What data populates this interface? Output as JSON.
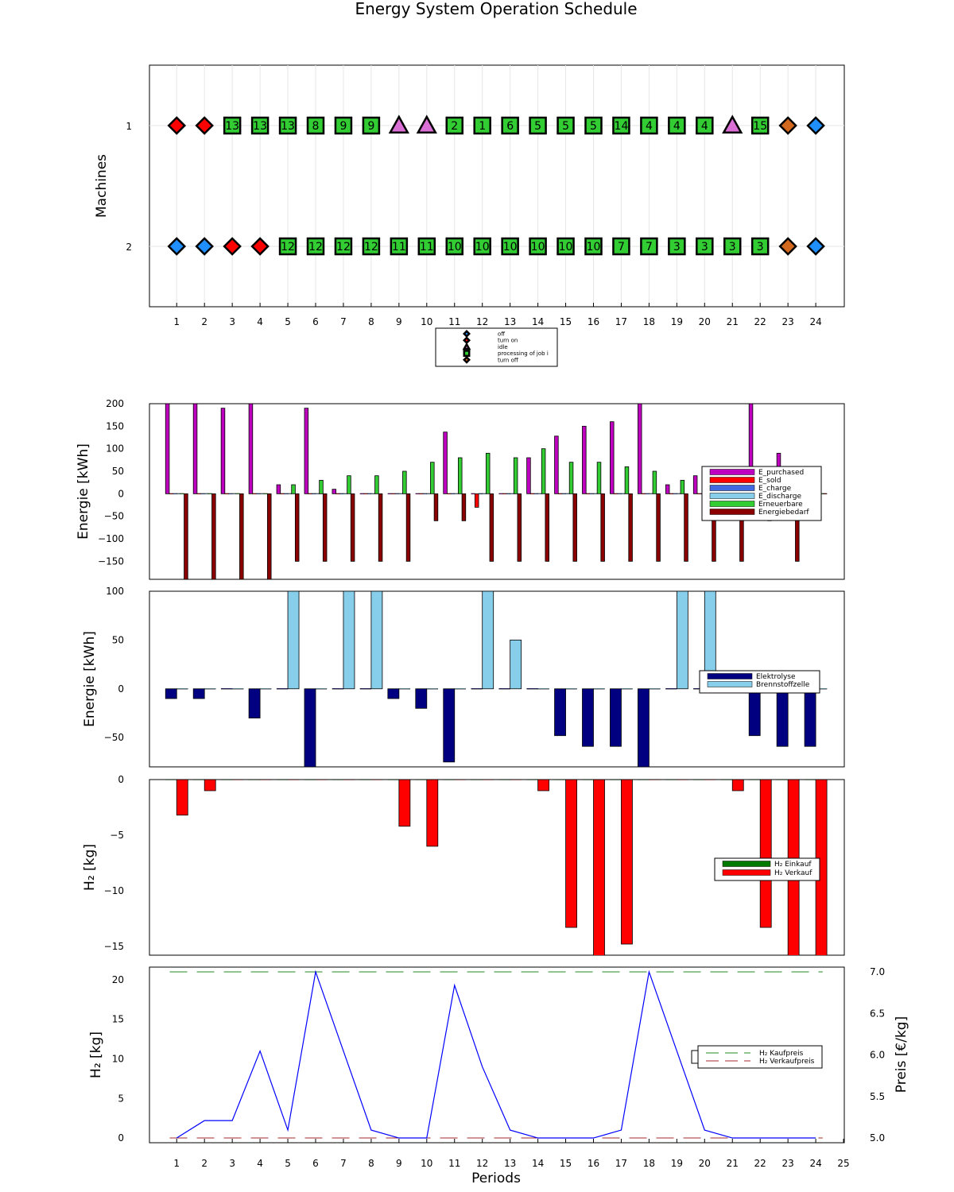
{
  "title": "Energy System Operation Schedule",
  "chart_data": [
    {
      "type": "scatter",
      "ylabel": "Machines",
      "xlabel": "",
      "x_ticks": [
        1,
        2,
        3,
        4,
        5,
        6,
        7,
        8,
        9,
        10,
        11,
        12,
        13,
        14,
        15,
        16,
        17,
        18,
        19,
        20,
        21,
        22,
        23,
        24
      ],
      "y_ticks": [
        "1",
        "2"
      ],
      "legend": [
        {
          "key": "off",
          "label": "off",
          "marker": "diamond",
          "color": "#1f8fff"
        },
        {
          "key": "on",
          "label": "turn on",
          "marker": "diamond",
          "color": "#ff0000"
        },
        {
          "key": "idle",
          "label": "idle",
          "marker": "triangle",
          "color": "#da70d6"
        },
        {
          "key": "job",
          "label": "processing of job i",
          "marker": "square",
          "color": "#32cd32"
        },
        {
          "key": "toff",
          "label": "turn off",
          "marker": "diamond",
          "color": "#d2691e"
        }
      ],
      "legend_position": "bottom-center",
      "machines": [
        {
          "name": "1",
          "states": [
            "on",
            "on",
            "13",
            "13",
            "13",
            "8",
            "9",
            "9",
            "idle",
            "idle",
            "2",
            "1",
            "6",
            "5",
            "5",
            "5",
            "14",
            "4",
            "4",
            "4",
            "idle",
            "15",
            "toff",
            "off"
          ]
        },
        {
          "name": "2",
          "states": [
            "off",
            "off",
            "on",
            "on",
            "12",
            "12",
            "12",
            "12",
            "11",
            "11",
            "10",
            "10",
            "10",
            "10",
            "10",
            "10",
            "7",
            "7",
            "3",
            "3",
            "3",
            "3",
            "toff",
            "off"
          ]
        }
      ]
    },
    {
      "type": "bar",
      "ylabel": "Energie [kWh]",
      "ylim": [
        -190,
        200
      ],
      "y_ticks": [
        -150,
        -100,
        -50,
        0,
        50,
        100,
        150,
        200
      ],
      "legend_position": "right",
      "series": [
        {
          "name": "E_purchased",
          "color": "#c000c0",
          "values": [
            200,
            200,
            190,
            200,
            20,
            190,
            10,
            0,
            0,
            0,
            137,
            0,
            0,
            80,
            128,
            150,
            160,
            200,
            20,
            40,
            0,
            200,
            90,
            0
          ]
        },
        {
          "name": "E_sold",
          "color": "#ff0000",
          "values": [
            0,
            0,
            0,
            0,
            0,
            0,
            0,
            0,
            0,
            0,
            0,
            -30,
            0,
            0,
            0,
            0,
            0,
            0,
            0,
            0,
            0,
            0,
            0,
            0
          ]
        },
        {
          "name": "E_charge",
          "color": "#4169e1",
          "values": [
            0,
            0,
            0,
            0,
            0,
            0,
            0,
            0,
            0,
            0,
            0,
            0,
            0,
            0,
            0,
            0,
            0,
            0,
            0,
            0,
            0,
            0,
            0,
            0
          ]
        },
        {
          "name": "E_discharge",
          "color": "#87ceeb",
          "values": [
            0,
            0,
            0,
            0,
            0,
            0,
            0,
            0,
            0,
            0,
            0,
            0,
            0,
            0,
            0,
            0,
            0,
            0,
            0,
            0,
            0,
            0,
            0,
            0
          ]
        },
        {
          "name": "Erneuerbare",
          "color": "#32cd32",
          "values": [
            0,
            0,
            0,
            0,
            20,
            30,
            40,
            40,
            50,
            70,
            80,
            90,
            80,
            100,
            70,
            70,
            60,
            50,
            30,
            30,
            0,
            0,
            0,
            0
          ]
        },
        {
          "name": "Energiebedarf",
          "color": "#8b0000",
          "values": [
            -190,
            -190,
            -190,
            -190,
            -150,
            -150,
            -150,
            -150,
            -150,
            -60,
            -60,
            -150,
            -150,
            -150,
            -150,
            -150,
            -150,
            -150,
            -150,
            -150,
            -150,
            -60,
            -150,
            0
          ]
        }
      ]
    },
    {
      "type": "bar",
      "ylabel": "Energie [kWh]",
      "ylim": [
        -80,
        100
      ],
      "y_ticks": [
        -50,
        0,
        50,
        100
      ],
      "legend_position": "right",
      "series": [
        {
          "name": "Elektrolyse",
          "color": "#000080",
          "values": [
            -10,
            -10,
            0,
            -30,
            0,
            -80,
            0,
            0,
            -10,
            -20,
            -75,
            0,
            0,
            0,
            -48,
            -59,
            -59,
            -80,
            0,
            0,
            0,
            -48,
            -59,
            -59
          ]
        },
        {
          "name": "Brennstoffzelle",
          "color": "#87ceeb",
          "values": [
            0,
            0,
            0,
            0,
            100,
            0,
            100,
            100,
            0,
            0,
            0,
            100,
            50,
            0,
            0,
            0,
            0,
            0,
            100,
            100,
            0,
            0,
            0,
            0
          ]
        }
      ]
    },
    {
      "type": "bar",
      "ylabel": "H₂ [kg]",
      "ylim": [
        -15.8,
        0
      ],
      "y_ticks": [
        -15,
        -10,
        -5,
        0
      ],
      "legend_position": "right",
      "series": [
        {
          "name": "H₂ Einkauf",
          "color": "#007a00",
          "values": [
            0,
            0,
            0,
            0,
            0,
            0,
            0,
            0,
            0,
            0,
            0,
            0,
            0,
            0,
            0,
            0,
            0,
            0,
            0,
            0,
            0,
            0,
            0,
            0
          ]
        },
        {
          "name": "H₂ Verkauf",
          "color": "#ff0000",
          "values": [
            -3.2,
            -1,
            0,
            0,
            0,
            0,
            0,
            0,
            -4.2,
            -6,
            0,
            0,
            0,
            -1,
            -13.3,
            -16,
            -14.8,
            0,
            0,
            0,
            -1,
            -13.3,
            -16,
            -16
          ]
        }
      ]
    },
    {
      "type": "line",
      "xlabel": "Periods",
      "ylabel": "H₂ [kg]",
      "y2label": "Preis [€/kg]",
      "x_ticks": [
        1,
        2,
        3,
        4,
        5,
        6,
        7,
        8,
        9,
        10,
        11,
        12,
        13,
        14,
        15,
        16,
        17,
        18,
        19,
        20,
        21,
        22,
        23,
        24,
        25
      ],
      "y_ticks": [
        0,
        5,
        10,
        15,
        20
      ],
      "y2_ticks": [
        "5.0",
        "5.5",
        "6.0",
        "6.5",
        "7.0"
      ],
      "ylim": [
        -0.6,
        21.6
      ],
      "y2lim": [
        5.0,
        7.0
      ],
      "storage": {
        "color": "#0000ff",
        "x": [
          1,
          2,
          3,
          4,
          5,
          6,
          7,
          8,
          9,
          10,
          11,
          12,
          13,
          14,
          15,
          16,
          17,
          18,
          19,
          20,
          21,
          22,
          23,
          24
        ],
        "values": [
          0,
          2.2,
          2.2,
          11,
          1,
          21,
          11,
          1,
          0,
          0,
          19.3,
          9,
          1,
          0,
          0,
          0,
          1,
          21,
          11,
          1,
          0,
          0,
          0,
          0
        ]
      },
      "legend_position": "right",
      "price_series": [
        {
          "name": "H₂ Kaufpreis",
          "color": "#228b22",
          "x0": 0.75,
          "x1": 24.25,
          "value": 7.0
        },
        {
          "name": "H₂ Verkaufpreis",
          "color": "#a52a2a",
          "x0": 0.75,
          "x1": 24.25,
          "value": 5.0
        }
      ]
    }
  ]
}
